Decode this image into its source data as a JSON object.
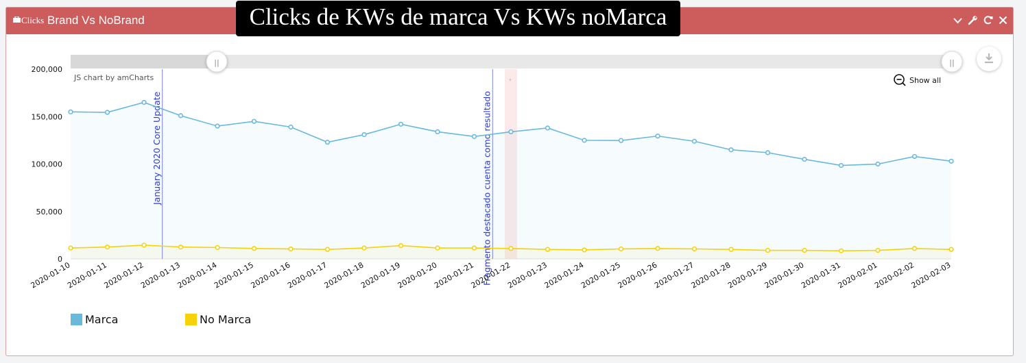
{
  "header": {
    "prefix": "Clicks",
    "title": "Brand Vs NoBrand",
    "overlay_title": "Clicks de KWs de marca Vs KWs noMarca",
    "tools": [
      "chevron-down-icon",
      "wrench-icon",
      "refresh-icon",
      "close-icon"
    ],
    "color": "#cd5c5c"
  },
  "chart_ui": {
    "credit": "JS chart by amCharts",
    "show_all": "Show all",
    "scrollbar_grip": "||"
  },
  "chart_data": {
    "type": "line",
    "x": [
      "2020-01-10",
      "2020-01-11",
      "2020-01-12",
      "2020-01-13",
      "2020-01-14",
      "2020-01-15",
      "2020-01-16",
      "2020-01-17",
      "2020-01-18",
      "2020-01-19",
      "2020-01-20",
      "2020-01-21",
      "2020-01-22",
      "2020-01-23",
      "2020-01-24",
      "2020-01-25",
      "2020-01-26",
      "2020-01-27",
      "2020-01-28",
      "2020-01-29",
      "2020-01-30",
      "2020-01-31",
      "2020-02-01",
      "2020-02-02",
      "2020-02-03"
    ],
    "series": [
      {
        "name": "Marca",
        "color": "#6ab8dc",
        "values": [
          155000,
          154500,
          165000,
          151000,
          140000,
          145000,
          139000,
          123000,
          131000,
          142000,
          134000,
          129000,
          134000,
          138000,
          125000,
          124800,
          129500,
          124000,
          115000,
          112000,
          105000,
          98500,
          100000,
          108000,
          103000
        ]
      },
      {
        "name": "No Marca",
        "color": "#f5d20a",
        "values": [
          11500,
          12500,
          14500,
          12500,
          12000,
          11000,
          10500,
          10000,
          11500,
          14000,
          11500,
          11500,
          11000,
          10000,
          9500,
          10500,
          11000,
          10500,
          10000,
          9000,
          9000,
          8500,
          9000,
          11000,
          10000
        ]
      }
    ],
    "ylim": [
      0,
      200000
    ],
    "yticks": [
      0,
      50000,
      100000,
      150000,
      200000
    ],
    "ytick_labels": [
      "0",
      "50,000",
      "100,000",
      "150,000",
      "200,000"
    ],
    "annotations": [
      {
        "date": "2020-01-12.5",
        "label": "January 2020 Core Update"
      },
      {
        "date": "2020-01-21.5",
        "label": "Fragmento destacado cuenta como resultado"
      }
    ],
    "highlight_band": {
      "from": "2020-01-22",
      "to": "2020-01-22"
    },
    "legend": [
      "Marca",
      "No Marca"
    ],
    "legend_position": "bottom-left",
    "grid": false
  }
}
